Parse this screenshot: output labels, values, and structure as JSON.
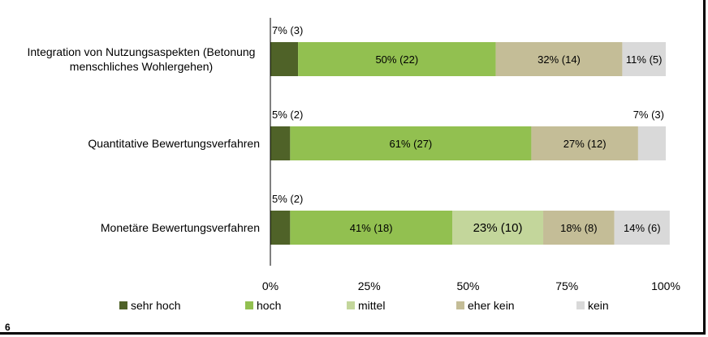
{
  "page_number": "6",
  "chart_data": {
    "type": "bar",
    "orientation": "horizontal",
    "stacked": "100%",
    "categories": [
      "Integration von Nutzungsaspekten (Betonung menschliches Wohlergehen)",
      "Quantitative Bewertungsverfahren",
      "Monetäre Bewertungsverfahren"
    ],
    "category_lines": [
      [
        "Integration von Nutzungsaspekten (Betonung",
        "menschliches Wohlergehen)"
      ],
      [
        "Quantitative Bewertungsverfahren"
      ],
      [
        "Monetäre Bewertungsverfahren"
      ]
    ],
    "series": [
      {
        "name": "sehr hoch",
        "color": "#4f6228",
        "values": [
          7,
          5,
          5
        ],
        "labels": [
          "7% (3)",
          "5% (2)",
          "5% (2)"
        ]
      },
      {
        "name": "hoch",
        "color": "#92c050",
        "values": [
          50,
          61,
          41
        ],
        "labels": [
          "50% (22)",
          "61% (27)",
          "41% (18)"
        ]
      },
      {
        "name": "mittel",
        "color": "#c3d69b",
        "values": [
          0,
          0,
          23
        ],
        "labels": [
          "",
          "",
          "23% (10)"
        ]
      },
      {
        "name": "eher kein",
        "color": "#c4bd97",
        "values": [
          32,
          27,
          18
        ],
        "labels": [
          "32% (14)",
          "27% (12)",
          "18% (8)"
        ]
      },
      {
        "name": "kein",
        "color": "#d9d9d9",
        "values": [
          11,
          7,
          14
        ],
        "labels": [
          "11% (5)",
          "7% (3)",
          "14% (6)"
        ]
      }
    ],
    "xticks": [
      "0%",
      "25%",
      "50%",
      "75%",
      "100%"
    ],
    "xlim": [
      0,
      100
    ],
    "grid": false,
    "legend_position": "bottom"
  }
}
